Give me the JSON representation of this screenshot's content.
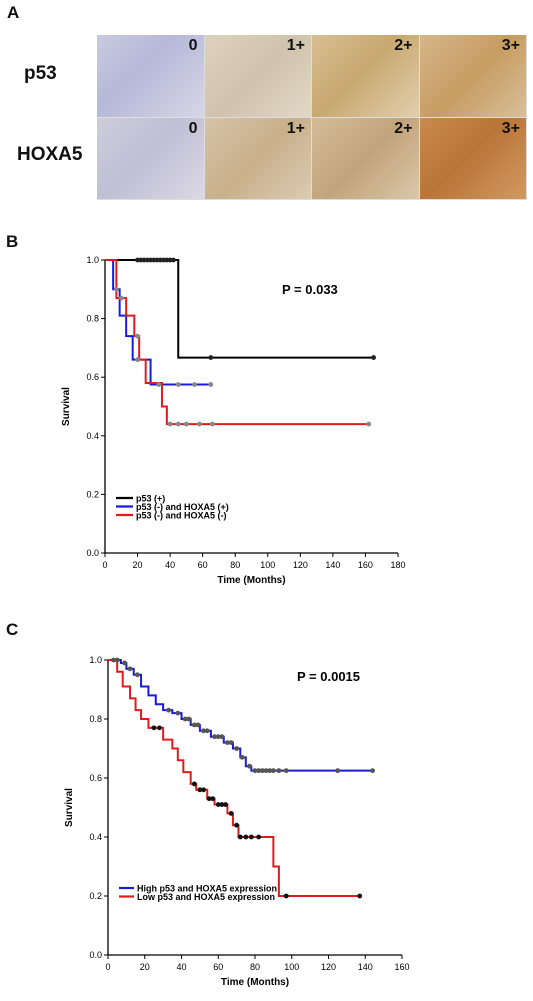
{
  "panel_a": {
    "letter": "A",
    "rows": [
      {
        "label": "p53",
        "scores": [
          "0",
          "1+",
          "2+",
          "3+"
        ]
      },
      {
        "label": "HOXA5",
        "scores": [
          "0",
          "1+",
          "2+",
          "3+"
        ]
      }
    ]
  },
  "chart_data": [
    {
      "panel": "B",
      "type": "line",
      "subtype": "kaplan-meier",
      "xlabel": "Time (Months)",
      "ylabel": "Survival",
      "xlim": [
        0,
        180
      ],
      "ylim": [
        0,
        1.0
      ],
      "xticks": [
        0,
        20,
        40,
        60,
        80,
        100,
        120,
        140,
        160,
        180
      ],
      "yticks": [
        0.0,
        0.2,
        0.4,
        0.6,
        0.8,
        1.0
      ],
      "annotation": "P = 0.033",
      "legend_position": "bottom-left",
      "series": [
        {
          "name": "p53 (+)",
          "color": "#000000",
          "marker_color": "#222222",
          "steps": [
            [
              0,
              1.0
            ],
            [
              45,
              1.0
            ],
            [
              45,
              0.667
            ],
            [
              165,
              0.667
            ]
          ],
          "censored": [
            [
              20,
              1.0
            ],
            [
              22,
              1.0
            ],
            [
              24,
              1.0
            ],
            [
              26,
              1.0
            ],
            [
              28,
              1.0
            ],
            [
              30,
              1.0
            ],
            [
              32,
              1.0
            ],
            [
              34,
              1.0
            ],
            [
              36,
              1.0
            ],
            [
              38,
              1.0
            ],
            [
              40,
              1.0
            ],
            [
              42,
              1.0
            ],
            [
              65,
              0.667
            ],
            [
              165,
              0.667
            ]
          ]
        },
        {
          "name": "p53 (-) and HOXA5 (+)",
          "color": "#1a1adb",
          "marker_color": "#888888",
          "steps": [
            [
              0,
              1.0
            ],
            [
              5,
              1.0
            ],
            [
              5,
              0.9
            ],
            [
              9,
              0.9
            ],
            [
              9,
              0.81
            ],
            [
              13,
              0.81
            ],
            [
              13,
              0.74
            ],
            [
              17,
              0.74
            ],
            [
              17,
              0.66
            ],
            [
              28,
              0.66
            ],
            [
              28,
              0.575
            ],
            [
              65,
              0.575
            ]
          ],
          "censored": [
            [
              7,
              0.9
            ],
            [
              20,
              0.66
            ],
            [
              33,
              0.575
            ],
            [
              45,
              0.575
            ],
            [
              55,
              0.575
            ],
            [
              65,
              0.575
            ]
          ]
        },
        {
          "name": "p53 (-) and HOXA5 (-)",
          "color": "#e01b1b",
          "marker_color": "#888888",
          "steps": [
            [
              0,
              1.0
            ],
            [
              7,
              1.0
            ],
            [
              7,
              0.87
            ],
            [
              13,
              0.87
            ],
            [
              13,
              0.81
            ],
            [
              18,
              0.81
            ],
            [
              18,
              0.74
            ],
            [
              21,
              0.74
            ],
            [
              21,
              0.66
            ],
            [
              25,
              0.66
            ],
            [
              25,
              0.58
            ],
            [
              35,
              0.58
            ],
            [
              35,
              0.5
            ],
            [
              38,
              0.5
            ],
            [
              38,
              0.44
            ],
            [
              162,
              0.44
            ]
          ],
          "censored": [
            [
              10,
              0.87
            ],
            [
              20,
              0.74
            ],
            [
              40,
              0.44
            ],
            [
              45,
              0.44
            ],
            [
              50,
              0.44
            ],
            [
              58,
              0.44
            ],
            [
              66,
              0.44
            ],
            [
              162,
              0.44
            ]
          ]
        }
      ]
    },
    {
      "panel": "C",
      "type": "line",
      "subtype": "kaplan-meier",
      "xlabel": "Time (Months)",
      "ylabel": "Survival",
      "xlim": [
        0,
        160
      ],
      "ylim": [
        0,
        1.0
      ],
      "xticks": [
        0,
        20,
        40,
        60,
        80,
        100,
        120,
        140,
        160
      ],
      "yticks": [
        0.0,
        0.2,
        0.4,
        0.6,
        0.8,
        1.0
      ],
      "annotation": "P = 0.0015",
      "legend_position": "bottom-left",
      "series": [
        {
          "name": "High p53 and HOXA5 expression",
          "color": "#1a1adb",
          "marker_color": "#555555",
          "steps": [
            [
              0,
              1.0
            ],
            [
              7,
              1.0
            ],
            [
              7,
              0.99
            ],
            [
              10,
              0.99
            ],
            [
              10,
              0.97
            ],
            [
              14,
              0.97
            ],
            [
              14,
              0.95
            ],
            [
              18,
              0.95
            ],
            [
              18,
              0.91
            ],
            [
              22,
              0.91
            ],
            [
              22,
              0.88
            ],
            [
              26,
              0.88
            ],
            [
              26,
              0.85
            ],
            [
              30,
              0.85
            ],
            [
              30,
              0.83
            ],
            [
              35,
              0.83
            ],
            [
              35,
              0.82
            ],
            [
              40,
              0.82
            ],
            [
              40,
              0.8
            ],
            [
              45,
              0.8
            ],
            [
              45,
              0.78
            ],
            [
              50,
              0.78
            ],
            [
              50,
              0.76
            ],
            [
              56,
              0.76
            ],
            [
              56,
              0.74
            ],
            [
              63,
              0.74
            ],
            [
              63,
              0.72
            ],
            [
              68,
              0.72
            ],
            [
              68,
              0.7
            ],
            [
              72,
              0.7
            ],
            [
              72,
              0.67
            ],
            [
              75,
              0.67
            ],
            [
              75,
              0.64
            ],
            [
              78,
              0.64
            ],
            [
              78,
              0.625
            ],
            [
              145,
              0.625
            ]
          ],
          "censored": [
            [
              3,
              1.0
            ],
            [
              5,
              1.0
            ],
            [
              9,
              0.99
            ],
            [
              12,
              0.97
            ],
            [
              16,
              0.95
            ],
            [
              33,
              0.83
            ],
            [
              38,
              0.82
            ],
            [
              42,
              0.8
            ],
            [
              44,
              0.8
            ],
            [
              47,
              0.78
            ],
            [
              49,
              0.78
            ],
            [
              52,
              0.76
            ],
            [
              54,
              0.76
            ],
            [
              58,
              0.74
            ],
            [
              60,
              0.74
            ],
            [
              62,
              0.74
            ],
            [
              65,
              0.72
            ],
            [
              67,
              0.72
            ],
            [
              70,
              0.7
            ],
            [
              73,
              0.67
            ],
            [
              77,
              0.64
            ],
            [
              80,
              0.625
            ],
            [
              82,
              0.625
            ],
            [
              84,
              0.625
            ],
            [
              86,
              0.625
            ],
            [
              88,
              0.625
            ],
            [
              90,
              0.625
            ],
            [
              93,
              0.625
            ],
            [
              97,
              0.625
            ],
            [
              125,
              0.625
            ],
            [
              144,
              0.625
            ]
          ]
        },
        {
          "name": "Low p53 and HOXA5 expression",
          "color": "#e01b1b",
          "marker_color": "#111111",
          "steps": [
            [
              0,
              1.0
            ],
            [
              5,
              1.0
            ],
            [
              5,
              0.96
            ],
            [
              8,
              0.96
            ],
            [
              8,
              0.91
            ],
            [
              12,
              0.91
            ],
            [
              12,
              0.87
            ],
            [
              15,
              0.87
            ],
            [
              15,
              0.83
            ],
            [
              18,
              0.83
            ],
            [
              18,
              0.8
            ],
            [
              22,
              0.8
            ],
            [
              22,
              0.77
            ],
            [
              30,
              0.77
            ],
            [
              30,
              0.73
            ],
            [
              35,
              0.73
            ],
            [
              35,
              0.7
            ],
            [
              38,
              0.7
            ],
            [
              38,
              0.66
            ],
            [
              41,
              0.66
            ],
            [
              41,
              0.62
            ],
            [
              45,
              0.62
            ],
            [
              45,
              0.58
            ],
            [
              48,
              0.58
            ],
            [
              48,
              0.56
            ],
            [
              54,
              0.56
            ],
            [
              54,
              0.53
            ],
            [
              58,
              0.53
            ],
            [
              58,
              0.51
            ],
            [
              65,
              0.51
            ],
            [
              65,
              0.48
            ],
            [
              68,
              0.48
            ],
            [
              68,
              0.44
            ],
            [
              71,
              0.44
            ],
            [
              71,
              0.4
            ],
            [
              90,
              0.4
            ],
            [
              90,
              0.3
            ],
            [
              93,
              0.3
            ],
            [
              93,
              0.2
            ],
            [
              137,
              0.2
            ]
          ],
          "censored": [
            [
              25,
              0.77
            ],
            [
              28,
              0.77
            ],
            [
              47,
              0.58
            ],
            [
              50,
              0.56
            ],
            [
              52,
              0.56
            ],
            [
              55,
              0.53
            ],
            [
              57,
              0.53
            ],
            [
              60,
              0.51
            ],
            [
              62,
              0.51
            ],
            [
              64,
              0.51
            ],
            [
              67,
              0.48
            ],
            [
              70,
              0.44
            ],
            [
              72,
              0.4
            ],
            [
              75,
              0.4
            ],
            [
              78,
              0.4
            ],
            [
              82,
              0.4
            ],
            [
              97,
              0.2
            ],
            [
              137,
              0.2
            ]
          ]
        }
      ]
    }
  ]
}
